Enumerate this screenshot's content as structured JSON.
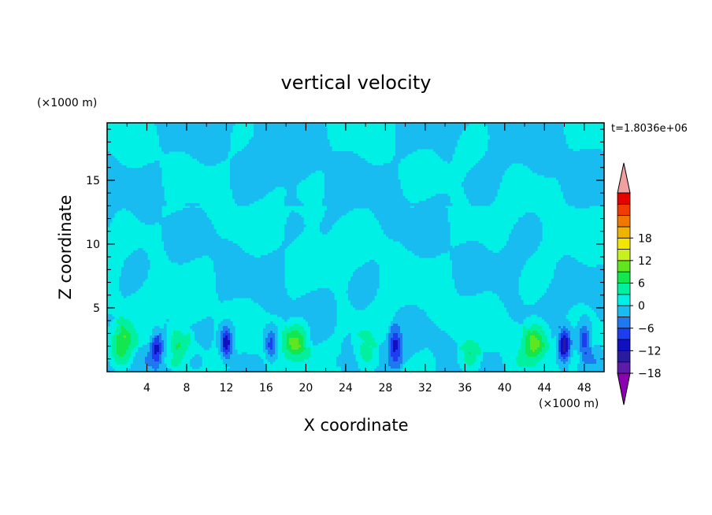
{
  "chart_data": {
    "type": "heatmap",
    "title": "vertical velocity",
    "xlabel": "X coordinate",
    "ylabel": "Z coordinate",
    "x_unit": "(×1000 m)",
    "y_unit": "(×1000 m)",
    "timestamp": "t=1.8036e+06",
    "xlim": [
      0,
      50
    ],
    "ylim": [
      0,
      19.5
    ],
    "x_ticks": [
      4,
      8,
      12,
      16,
      20,
      24,
      28,
      32,
      36,
      40,
      44,
      48
    ],
    "y_ticks": [
      5,
      10,
      15
    ],
    "colorbar": {
      "min": -21,
      "max": 21,
      "step": 3,
      "extend": "both",
      "tick_labels": [
        "-18",
        "-12",
        "-6",
        "0",
        "6",
        "12",
        "18"
      ],
      "colors": [
        "#8b00b0",
        "#5e1aa8",
        "#2a1aa0",
        "#1010c0",
        "#1e3cf0",
        "#1e78f0",
        "#18bcf0",
        "#00f0e6",
        "#00f0a0",
        "#14e650",
        "#60e61e",
        "#c8f01e",
        "#f0e600",
        "#f0b400",
        "#f07800",
        "#f03c00",
        "#e60000",
        "#f0a0a0"
      ]
    },
    "background_level": "0 to 3 (near-zero vertical velocity aloft)",
    "features": [
      {
        "kind": "updraft",
        "x": 1.5,
        "z": 2.3,
        "value": 10
      },
      {
        "kind": "updraft",
        "x": 7.0,
        "z": 2.5,
        "value": 6
      },
      {
        "kind": "updraft",
        "x": 19.0,
        "z": 2.3,
        "value": 10
      },
      {
        "kind": "updraft",
        "x": 26.0,
        "z": 2.0,
        "value": 5
      },
      {
        "kind": "updraft",
        "x": 36.5,
        "z": 1.5,
        "value": 4
      },
      {
        "kind": "updraft",
        "x": 43.0,
        "z": 2.3,
        "value": 10
      },
      {
        "kind": "downdraft",
        "x": 5.0,
        "z": 1.8,
        "value": -9
      },
      {
        "kind": "downdraft",
        "x": 12.0,
        "z": 2.2,
        "value": -12
      },
      {
        "kind": "downdraft",
        "x": 16.5,
        "z": 2.0,
        "value": -8
      },
      {
        "kind": "downdraft",
        "x": 29.0,
        "z": 2.2,
        "value": -9
      },
      {
        "kind": "downdraft",
        "x": 46.0,
        "z": 2.0,
        "value": -15
      },
      {
        "kind": "downdraft",
        "x": 48.0,
        "z": 2.5,
        "value": -9
      }
    ]
  }
}
